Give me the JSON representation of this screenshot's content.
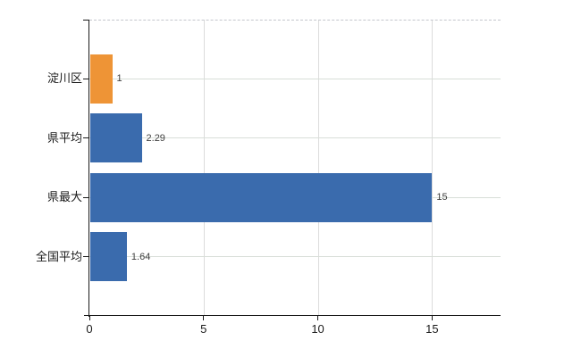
{
  "chart_data": {
    "type": "bar",
    "orientation": "horizontal",
    "title": "",
    "xlabel": "",
    "ylabel": "",
    "categories": [
      "淀川区",
      "県平均",
      "県最大",
      "全国平均"
    ],
    "values": [
      1,
      2.29,
      15,
      1.64
    ],
    "value_labels": [
      "1",
      "2.29",
      "15",
      "1.64"
    ],
    "bar_colors": [
      "#EE9436",
      "#3A6BAD",
      "#3A6BAD",
      "#3A6BAD"
    ],
    "xticks": [
      "0",
      "5",
      "10",
      "15"
    ],
    "xtick_values": [
      0,
      5,
      10,
      15
    ],
    "xlim": [
      0,
      18
    ],
    "grid": "on",
    "legend": "none",
    "colors": {
      "highlight_orange": "#EE9436",
      "series_blue": "#3A6BAD",
      "gridline": "#D8DED8",
      "axis": "#1A1A1A",
      "value_text": "#404040",
      "background": "#FFFFFF"
    }
  }
}
